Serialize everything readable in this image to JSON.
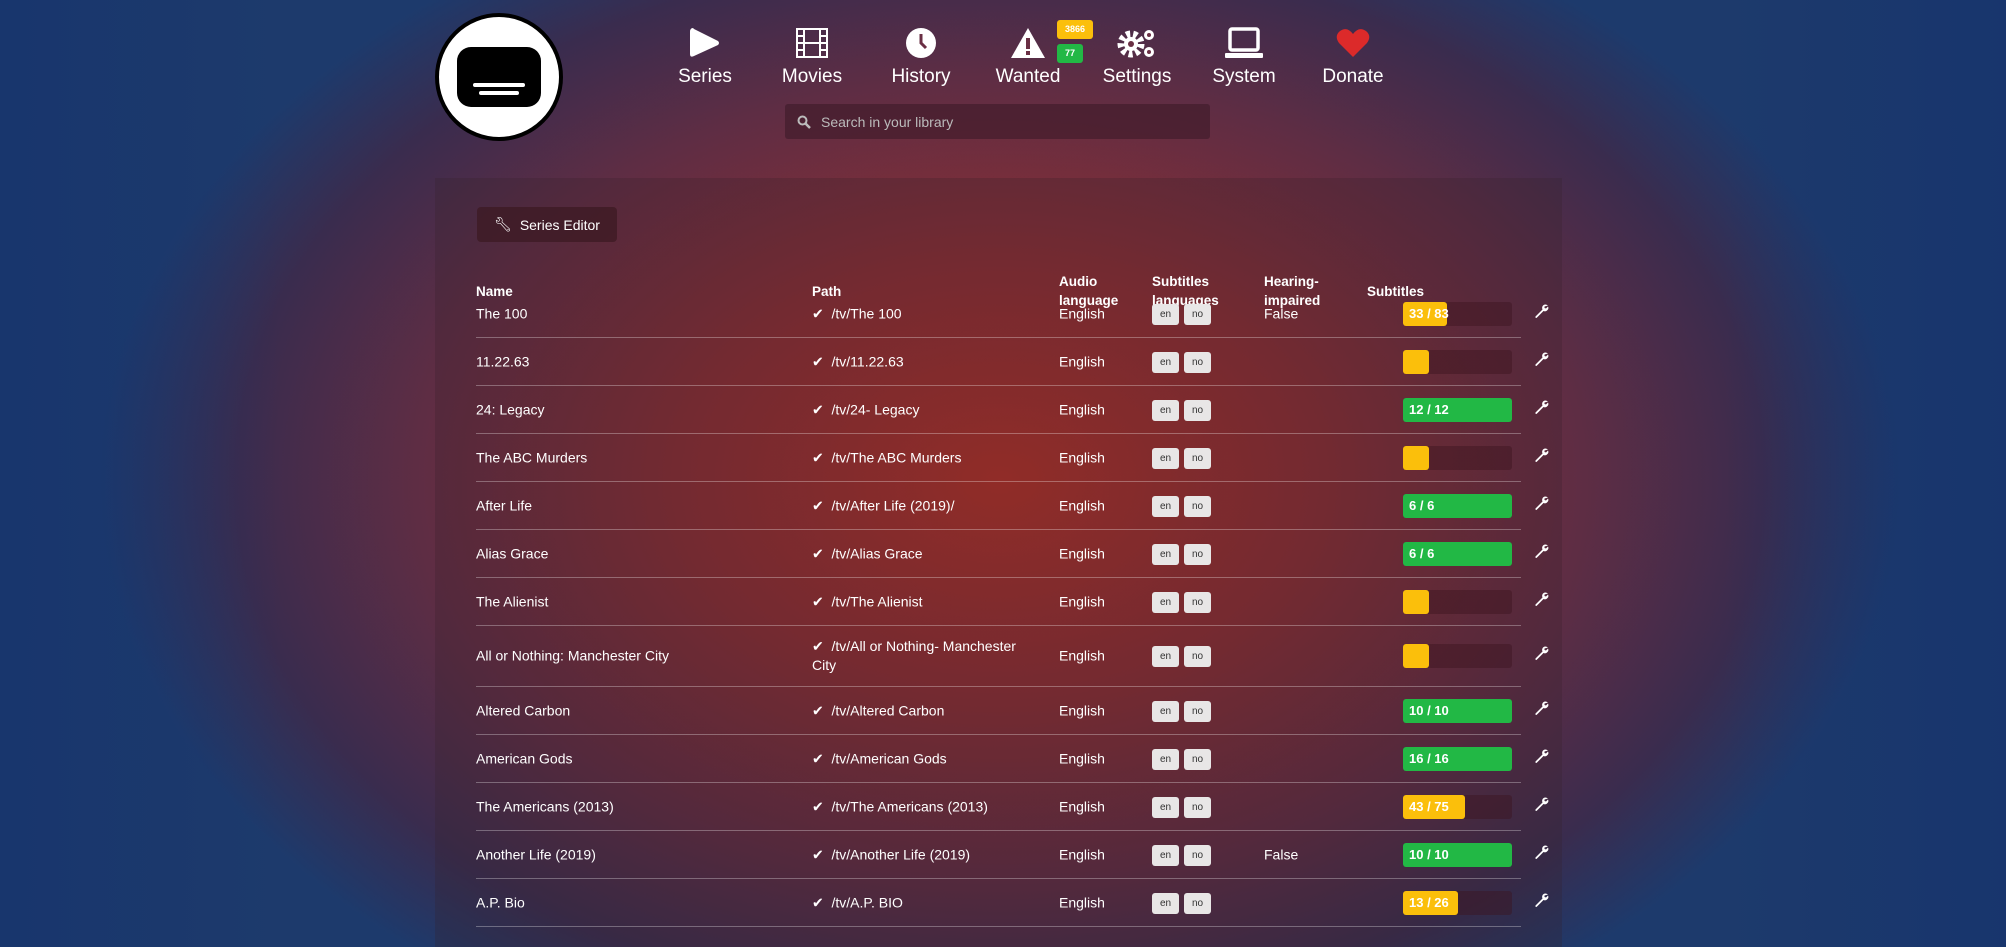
{
  "colors": {
    "warning": "#fbbf0b",
    "success": "#22b845",
    "danger": "#dc2a2a"
  },
  "nav": [
    {
      "label": "Series",
      "icon": "play-icon"
    },
    {
      "label": "Movies",
      "icon": "film-icon"
    },
    {
      "label": "History",
      "icon": "clock-icon"
    },
    {
      "label": "Wanted",
      "icon": "warning-icon",
      "badges": [
        "3866",
        "77"
      ]
    },
    {
      "label": "Settings",
      "icon": "gears-icon"
    },
    {
      "label": "System",
      "icon": "laptop-icon"
    },
    {
      "label": "Donate",
      "icon": "heart-icon"
    }
  ],
  "search": {
    "placeholder": "Search in your library"
  },
  "series_editor_label": "Series Editor",
  "columns": {
    "name": "Name",
    "path": "Path",
    "audio1": "Audio",
    "audio2": "language",
    "subs1": "Subtitles",
    "subs2": "languages",
    "hi1": "Hearing-",
    "hi2": "impaired",
    "subtitles": "Subtitles"
  },
  "rows": [
    {
      "name": "The 100",
      "path": "/tv/The 100",
      "audio": "English",
      "langs": [
        "en",
        "no"
      ],
      "hi": "False",
      "progress": "33 / 83",
      "fraction": 0.4,
      "status": "warning"
    },
    {
      "name": "11.22.63",
      "path": "/tv/11.22.63",
      "audio": "English",
      "langs": [
        "en",
        "no"
      ],
      "hi": "",
      "progress": "",
      "fraction": 0,
      "status": "warning"
    },
    {
      "name": "24: Legacy",
      "path": "/tv/24- Legacy",
      "audio": "English",
      "langs": [
        "en",
        "no"
      ],
      "hi": "",
      "progress": "12 / 12",
      "fraction": 1,
      "status": "success"
    },
    {
      "name": "The ABC Murders",
      "path": "/tv/The ABC Murders",
      "audio": "English",
      "langs": [
        "en",
        "no"
      ],
      "hi": "",
      "progress": "",
      "fraction": 0,
      "status": "warning"
    },
    {
      "name": "After Life",
      "path": "/tv/After Life (2019)/",
      "audio": "English",
      "langs": [
        "en",
        "no"
      ],
      "hi": "",
      "progress": "6 / 6",
      "fraction": 1,
      "status": "success"
    },
    {
      "name": "Alias Grace",
      "path": "/tv/Alias Grace",
      "audio": "English",
      "langs": [
        "en",
        "no"
      ],
      "hi": "",
      "progress": "6 / 6",
      "fraction": 1,
      "status": "success"
    },
    {
      "name": "The Alienist",
      "path": "/tv/The Alienist",
      "audio": "English",
      "langs": [
        "en",
        "no"
      ],
      "hi": "",
      "progress": "",
      "fraction": 0,
      "status": "warning"
    },
    {
      "name": "All or Nothing: Manchester City",
      "path": "/tv/All or Nothing- Manchester City",
      "audio": "English",
      "langs": [
        "en",
        "no"
      ],
      "hi": "",
      "progress": "",
      "fraction": 0,
      "status": "warning"
    },
    {
      "name": "Altered Carbon",
      "path": "/tv/Altered Carbon",
      "audio": "English",
      "langs": [
        "en",
        "no"
      ],
      "hi": "",
      "progress": "10 / 10",
      "fraction": 1,
      "status": "success"
    },
    {
      "name": "American Gods",
      "path": "/tv/American Gods",
      "audio": "English",
      "langs": [
        "en",
        "no"
      ],
      "hi": "",
      "progress": "16 / 16",
      "fraction": 1,
      "status": "success"
    },
    {
      "name": "The Americans (2013)",
      "path": "/tv/The Americans (2013)",
      "audio": "English",
      "langs": [
        "en",
        "no"
      ],
      "hi": "",
      "progress": "43 / 75",
      "fraction": 0.57,
      "status": "warning"
    },
    {
      "name": "Another Life (2019)",
      "path": "/tv/Another Life (2019)",
      "audio": "English",
      "langs": [
        "en",
        "no"
      ],
      "hi": "False",
      "progress": "10 / 10",
      "fraction": 1,
      "status": "success"
    },
    {
      "name": "A.P. Bio",
      "path": "/tv/A.P. BIO",
      "audio": "English",
      "langs": [
        "en",
        "no"
      ],
      "hi": "",
      "progress": "13 / 26",
      "fraction": 0.5,
      "status": "warning"
    }
  ]
}
